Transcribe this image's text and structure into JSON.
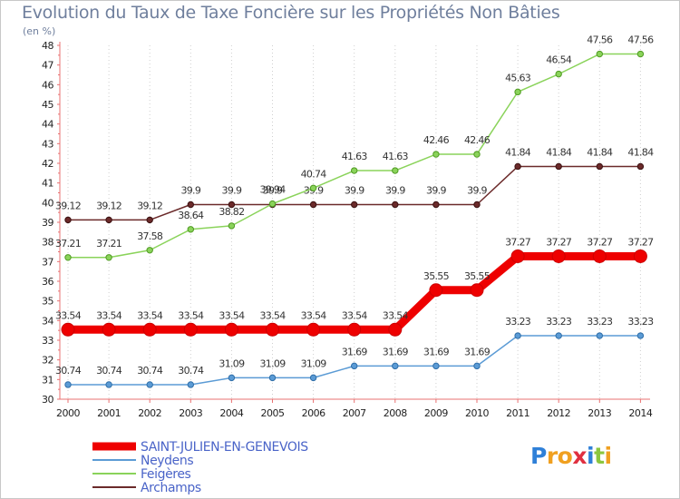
{
  "header": {
    "title": "Evolution du Taux de Taxe Foncière sur les Propriétés Non Bâties",
    "unit": "(en %)"
  },
  "brand": {
    "letters": [
      "P",
      "r",
      "o",
      "x",
      "i",
      "t",
      "i"
    ],
    "colors": [
      "#2f80d8",
      "#f0a020",
      "#f0a020",
      "#e03040",
      "#2f80d8",
      "#8cc63f",
      "#f0a020"
    ]
  },
  "chart_data": {
    "type": "line",
    "title": "Evolution du Taux de Taxe Foncière sur les Propriétés Non Bâties",
    "ylabel": "(en %)",
    "xlabel": "",
    "ylim": [
      30,
      48
    ],
    "yticks": [
      "30",
      "31",
      "32",
      "33",
      "34",
      "35",
      "36",
      "37",
      "38",
      "39",
      "40",
      "41",
      "42",
      "43",
      "44",
      "45",
      "46",
      "47",
      "48"
    ],
    "categories": [
      "2000",
      "2001",
      "2002",
      "2003",
      "2004",
      "2005",
      "2006",
      "2007",
      "2008",
      "2009",
      "2010",
      "2011",
      "2012",
      "2013",
      "2014"
    ],
    "grid": "vertical dotted",
    "legend_position": "bottom-left",
    "series": [
      {
        "name": "Archamps",
        "color": "#6b2a2a",
        "values": [
          39.12,
          39.12,
          39.12,
          39.9,
          39.9,
          39.9,
          39.9,
          39.9,
          39.9,
          39.9,
          39.9,
          41.84,
          41.84,
          41.84,
          41.84
        ],
        "labels": [
          "39.12",
          "39.12",
          "39.12",
          "39.9",
          "39.9",
          "39.9",
          "39.9",
          "39.9",
          "39.9",
          "39.9",
          "39.9",
          "41.84",
          "41.84",
          "41.84",
          "41.84"
        ]
      },
      {
        "name": "Feigères",
        "color": "#8ad35a",
        "values": [
          37.21,
          37.21,
          37.58,
          38.64,
          38.82,
          39.94,
          40.74,
          41.63,
          41.63,
          42.46,
          42.46,
          45.63,
          46.54,
          47.56,
          47.56
        ],
        "labels": [
          "37.21",
          "37.21",
          "37.58",
          "38.64",
          "38.82",
          "39.94",
          "40.74",
          "41.63",
          "41.63",
          "42.46",
          "42.46",
          "45.63",
          "46.54",
          "47.56",
          "47.56"
        ]
      },
      {
        "name": "Neydens",
        "color": "#5b9bd5",
        "values": [
          30.74,
          30.74,
          30.74,
          30.74,
          31.09,
          31.09,
          31.09,
          31.69,
          31.69,
          31.69,
          31.69,
          33.23,
          33.23,
          33.23,
          33.23
        ],
        "labels": [
          "30.74",
          "30.74",
          "30.74",
          "30.74",
          "31.09",
          "31.09",
          "31.09",
          "31.69",
          "31.69",
          "31.69",
          "31.69",
          "33.23",
          "33.23",
          "33.23",
          "33.23"
        ]
      },
      {
        "name": "SAINT-JULIEN-EN-GENEVOIS",
        "color": "#ee0000",
        "values": [
          33.54,
          33.54,
          33.54,
          33.54,
          33.54,
          33.54,
          33.54,
          33.54,
          33.54,
          35.55,
          35.55,
          37.27,
          37.27,
          37.27,
          37.27
        ],
        "labels": [
          "33.54",
          "33.54",
          "33.54",
          "33.54",
          "33.54",
          "33.54",
          "33.54",
          "33.54",
          "33.54",
          "35.55",
          "35.55",
          "37.27",
          "37.27",
          "37.27",
          "37.27"
        ]
      }
    ],
    "legend": [
      "SAINT-JULIEN-EN-GENEVOIS",
      "Neydens",
      "Feigères",
      "Archamps"
    ]
  }
}
